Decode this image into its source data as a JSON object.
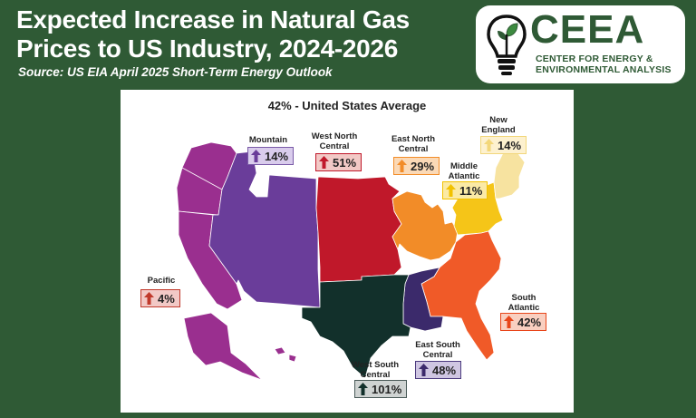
{
  "header": {
    "title_line1": "Expected Increase in Natural Gas",
    "title_line2": "Prices to US Industry, 2024-2026",
    "source": "Source: US EIA April 2025 Short-Term Energy Outlook"
  },
  "logo": {
    "name": "CEEA",
    "sub1": "CENTER FOR ENERGY &",
    "sub2": "ENVIRONMENTAL ANALYSIS",
    "icon": "lightbulb-leaf-icon"
  },
  "map": {
    "title": "42% - United States Average",
    "regions": {
      "pacific": {
        "name": "Pacific",
        "value": "4%",
        "color": "#9a2f8f",
        "badge_bg": "#f2c9c6",
        "badge_border": "#c0392b",
        "arrow": "#c0392b"
      },
      "mountain": {
        "name": "Mountain",
        "value": "14%",
        "color": "#6a3d9a",
        "badge_bg": "#d9ccec",
        "badge_border": "#7a5aa8",
        "arrow": "#6a3d9a"
      },
      "west_north_central": {
        "name_line1": "West North",
        "name_line2": "Central",
        "value": "51%",
        "color": "#c0182a",
        "badge_bg": "#f2c9c6",
        "badge_border": "#c0182a",
        "arrow": "#c0182a"
      },
      "east_north_central": {
        "name_line1": "East North",
        "name_line2": "Central",
        "value": "29%",
        "color": "#f28c28",
        "badge_bg": "#fbd9b6",
        "badge_border": "#f28c28",
        "arrow": "#f28c28"
      },
      "new_england": {
        "name_line1": "New",
        "name_line2": "England",
        "value": "14%",
        "color": "#f7e3a0",
        "badge_bg": "#fdf1cf",
        "badge_border": "#f1d77c",
        "arrow": "#f3d77a"
      },
      "middle_atlantic": {
        "name_line1": "Middle",
        "name_line2": "Atlantic",
        "value": "11%",
        "color": "#f5c518",
        "badge_bg": "#fbeaa5",
        "badge_border": "#f2c200",
        "arrow": "#f2c200"
      },
      "south_atlantic": {
        "name_line1": "South",
        "name_line2": "Atlantic",
        "value": "42%",
        "color": "#f05a28",
        "badge_bg": "#f9cfc0",
        "badge_border": "#e8451a",
        "arrow": "#e8451a"
      },
      "east_south_central": {
        "name_line1": "East South",
        "name_line2": "Central",
        "value": "48%",
        "color": "#3b2a6b",
        "badge_bg": "#cfc6e2",
        "badge_border": "#4b3a7e",
        "arrow": "#3b2a6b"
      },
      "west_south_central": {
        "name_line1": "West South",
        "name_line2": "Central",
        "value": "101%",
        "color": "#12302b",
        "badge_bg": "#cfd3d2",
        "badge_border": "#4a5a58",
        "arrow": "#12302b"
      }
    }
  }
}
